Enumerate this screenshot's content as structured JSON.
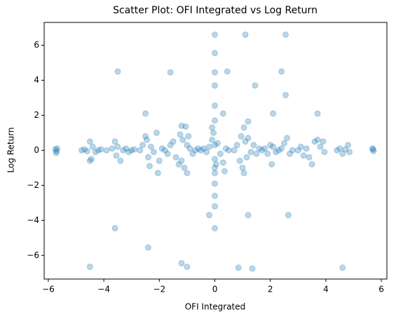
{
  "chart_data": {
    "type": "scatter",
    "title": "Scatter Plot: OFI Integrated vs Log Return",
    "x_label": "OFI Integrated",
    "y_label": "Log Return",
    "color": "#1f77b4",
    "alpha": 0.3,
    "xlim": [
      -6.15,
      6.2
    ],
    "ylim": [
      -7.35,
      7.3
    ],
    "xticks": [
      {
        "value": -6,
        "label": "−6"
      },
      {
        "value": -4,
        "label": "−4"
      },
      {
        "value": -2,
        "label": "−2"
      },
      0,
      2,
      4,
      6
    ],
    "yticks": [
      {
        "value": -6,
        "label": "−6"
      },
      {
        "value": -4,
        "label": "−4"
      },
      {
        "value": -2,
        "label": "−2"
      },
      0,
      2,
      4,
      6
    ],
    "x": [
      0,
      1.1,
      2.55,
      0,
      -3.5,
      -1.6,
      0,
      0.45,
      2.4,
      0,
      1.45,
      2.55,
      -2.5,
      0.3,
      2.1,
      3.7,
      0,
      1.2,
      0,
      1.05,
      -1.2,
      -1.05,
      -0.1,
      -3.6,
      -2.4,
      -4.5,
      -1.2,
      -1.0,
      0.85,
      1.35,
      4.6,
      1.2,
      2.65,
      -0.2,
      0,
      0,
      0,
      0,
      -5.75,
      -5.7,
      -5.72,
      -5.68,
      -4.8,
      -4.7,
      -4.6,
      -4.5,
      -4.5,
      -4.45,
      -4.4,
      -4.3,
      -4.2,
      -4.1,
      -3.9,
      -3.7,
      -3.6,
      -3.55,
      -3.5,
      -3.4,
      -3.3,
      -3.2,
      -3.1,
      -3.0,
      -2.9,
      -2.7,
      -2.6,
      -2.5,
      -2.45,
      -2.4,
      -2.35,
      -2.3,
      -2.2,
      -2.1,
      -2.05,
      -2.0,
      -1.9,
      -1.8,
      -1.7,
      -1.6,
      -1.5,
      -1.4,
      -1.3,
      -1.25,
      -1.2,
      -1.15,
      -1.1,
      -1.0,
      -1.0,
      -0.95,
      -0.9,
      -0.8,
      -0.7,
      -0.6,
      -0.5,
      -0.4,
      -0.3,
      -0.2,
      -0.1,
      -0.05,
      0,
      0,
      0,
      0,
      0.05,
      0.1,
      0.2,
      0.3,
      0.35,
      0.4,
      0.5,
      0.7,
      0.8,
      0.9,
      0.95,
      1.0,
      1.05,
      1.1,
      1.15,
      1.2,
      1.3,
      1.4,
      1.5,
      1.6,
      1.7,
      1.8,
      1.9,
      2.0,
      2.05,
      2.1,
      2.2,
      2.3,
      2.4,
      2.5,
      2.6,
      2.7,
      2.8,
      3.0,
      3.1,
      3.2,
      3.3,
      3.4,
      3.5,
      3.6,
      3.7,
      3.8,
      3.9,
      3.95,
      4.4,
      4.5,
      4.6,
      4.7,
      4.8,
      4.85,
      5.7,
      5.72,
      5.68
    ],
    "y": [
      6.6,
      6.6,
      6.6,
      5.55,
      4.5,
      4.45,
      4.45,
      4.5,
      4.5,
      3.7,
      3.7,
      3.15,
      2.1,
      2.1,
      2.1,
      2.1,
      2.55,
      1.65,
      1.7,
      1.3,
      1.4,
      1.35,
      1.3,
      -4.45,
      -5.55,
      -6.65,
      -6.45,
      -6.65,
      -6.7,
      -6.75,
      -6.7,
      -3.7,
      -3.7,
      -3.7,
      -4.45,
      -3.2,
      -2.6,
      -1.9,
      0.05,
      -0.05,
      -0.15,
      0.1,
      0,
      0.05,
      -0.05,
      0.5,
      -0.6,
      -0.5,
      0.2,
      -0.1,
      0,
      0.05,
      0,
      0.1,
      0.5,
      -0.3,
      0.2,
      -0.6,
      0,
      0.1,
      -0.1,
      0,
      0.05,
      0,
      0.3,
      0.8,
      0.6,
      -0.4,
      -0.9,
      0.2,
      -0.1,
      1.0,
      -1.3,
      -0.6,
      0.1,
      0,
      -0.2,
      0.3,
      0.5,
      -0.4,
      -0.8,
      0.9,
      -0.6,
      0.6,
      -1.0,
      0.3,
      -1.3,
      0.8,
      0.1,
      -0.2,
      0,
      0.1,
      0,
      0.1,
      -0.1,
      0.2,
      0.6,
      1.0,
      -0.5,
      -1.0,
      -1.3,
      0.3,
      -0.8,
      0.4,
      -0.2,
      -0.7,
      -1.2,
      0.1,
      0,
      0,
      0.3,
      -0.6,
      0.8,
      -1.0,
      -1.3,
      0.5,
      -0.4,
      0.7,
      -0.1,
      0.3,
      -0.2,
      0.1,
      0,
      0.1,
      -0.2,
      0.3,
      -0.8,
      0.2,
      -0.1,
      0,
      0.1,
      0.4,
      0.7,
      -0.2,
      0,
      0,
      0.2,
      -0.3,
      0.1,
      -0.4,
      -0.8,
      0.5,
      0.6,
      0.2,
      0.5,
      -0.1,
      0,
      0.1,
      -0.2,
      0.05,
      0.3,
      -0.1,
      0.05,
      -0.05,
      0.1
    ]
  }
}
